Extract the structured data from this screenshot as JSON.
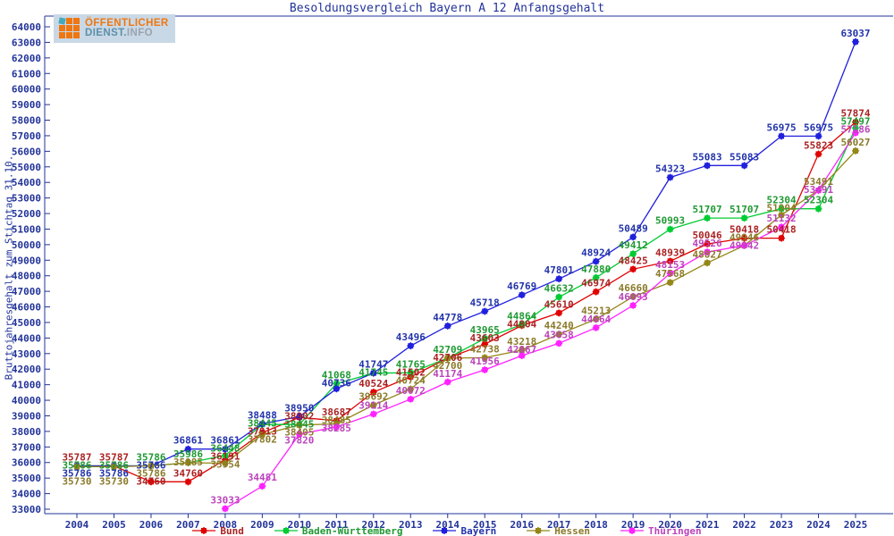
{
  "logo": {
    "line1": "ÖFFENTLICHER",
    "line2_part1": "DIENST.",
    "line2_part2": "INFO"
  },
  "chart_data": {
    "type": "line",
    "title": "Besoldungsvergleich Bayern A 12 Anfangsgehalt",
    "ylabel": "Bruttojahresgehalt zum Stichtag 31.10.",
    "xlabel": "",
    "ylim": [
      33000,
      64000
    ],
    "y_tick_step": 1000,
    "grid": false,
    "legend_position": "bottom",
    "axis_color": "#223399",
    "categories": [
      "2004",
      "2005",
      "2006",
      "2007",
      "2008",
      "2009",
      "2010",
      "2011",
      "2012",
      "2013",
      "2014",
      "2015",
      "2016",
      "2017",
      "2018",
      "2019",
      "2020",
      "2021",
      "2022",
      "2023",
      "2024",
      "2025"
    ],
    "series": [
      {
        "name": "Bund",
        "color": "#e00000",
        "label_color": "#aa2222",
        "values": [
          35787,
          35787,
          34760,
          34760,
          36191,
          37913,
          38902,
          38687,
          40524,
          41502,
          42706,
          43603,
          44804,
          45610,
          46974,
          48425,
          48939,
          50046,
          50418,
          50418,
          55823,
          57874
        ]
      },
      {
        "name": "Baden-Württemberg",
        "color": "#00cc33",
        "label_color": "#1f9933",
        "values": [
          35786,
          35786,
          35786,
          35986,
          36448,
          38445,
          38445,
          41068,
          41745,
          41765,
          42709,
          43965,
          44864,
          46632,
          47880,
          49412,
          50993,
          51707,
          51707,
          52304,
          52304,
          57497
        ]
      },
      {
        "name": "Bayern",
        "color": "#2020dd",
        "label_color": "#2233aa",
        "values": [
          35786,
          35786,
          35786,
          36861,
          36861,
          38488,
          38950,
          40736,
          41747,
          43496,
          44778,
          45718,
          46769,
          47801,
          48924,
          50489,
          54323,
          55083,
          55083,
          56975,
          56975,
          63037
        ]
      },
      {
        "name": "Hessen",
        "color": "#948618",
        "label_color": "#8a7a2a",
        "values": [
          35730,
          35730,
          35786,
          35985,
          35954,
          37802,
          38405,
          38485,
          39692,
          40724,
          42700,
          42738,
          43218,
          44240,
          45213,
          46660,
          47568,
          48827,
          49946,
          51904,
          53491,
          56027
        ]
      },
      {
        "name": "Thüringen",
        "color": "#ff22ff",
        "label_color": "#bb44bb",
        "values": [
          null,
          null,
          null,
          null,
          33033,
          34481,
          37820,
          38285,
          39114,
          40072,
          41174,
          41956,
          42867,
          43658,
          44664,
          46093,
          48153,
          49526,
          49942,
          51132,
          53491,
          57186
        ]
      }
    ]
  }
}
